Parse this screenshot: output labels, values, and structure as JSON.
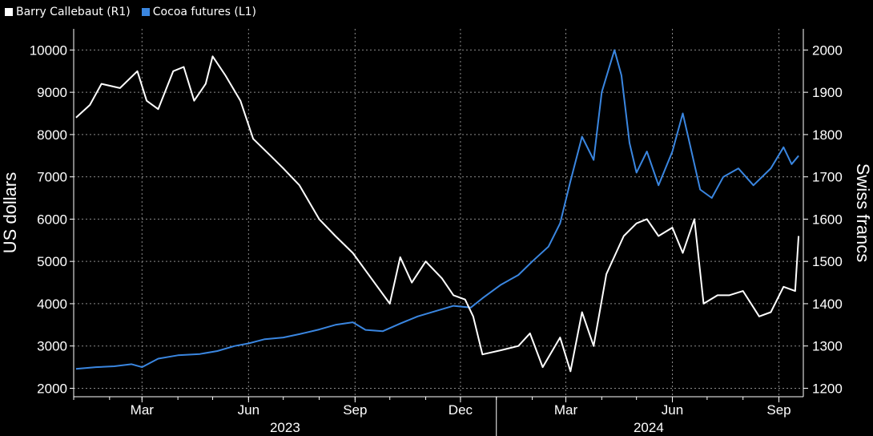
{
  "colors": {
    "background": "#000000",
    "cocoa": "#3a86e0",
    "barry": "#ffffff",
    "grid": "#8a8a8a"
  },
  "legend": [
    {
      "label": "Barry Callebaut (R1)",
      "color": "#ffffff"
    },
    {
      "label": "Cocoa futures (L1)",
      "color": "#3a86e0"
    }
  ],
  "chart_data": {
    "type": "line",
    "title": "",
    "left_axis": {
      "label": "US dollars",
      "ticks": [
        10000,
        9000,
        8000,
        7000,
        6000,
        5000,
        4000,
        3000,
        2000
      ],
      "range": [
        1800,
        10500
      ]
    },
    "right_axis": {
      "label": "Swiss francs",
      "ticks": [
        2000,
        1900,
        1800,
        1700,
        1600,
        1500,
        1400,
        1300,
        1200
      ],
      "range": [
        1180,
        2050
      ]
    },
    "x_axis": {
      "range": [
        "2023-01-01",
        "2024-09-20"
      ],
      "month_ticks": [
        {
          "label": "Mar",
          "date": "2023-03-01"
        },
        {
          "label": "Jun",
          "date": "2023-06-01"
        },
        {
          "label": "Sep",
          "date": "2023-09-01"
        },
        {
          "label": "Dec",
          "date": "2023-12-01"
        },
        {
          "label": "Mar",
          "date": "2024-03-01"
        },
        {
          "label": "Jun",
          "date": "2024-06-01"
        },
        {
          "label": "Sep",
          "date": "2024-09-01"
        }
      ],
      "year_labels": [
        {
          "label": "2023",
          "start": "2023-01-01",
          "end": "2024-01-01"
        },
        {
          "label": "2024",
          "start": "2024-01-01",
          "end": "2024-09-20"
        }
      ],
      "year_divider": "2024-01-01"
    },
    "series": [
      {
        "name": "Cocoa futures (L1)",
        "axis": "left",
        "color": "#3a86e0",
        "points": [
          [
            "2023-01-03",
            2460
          ],
          [
            "2023-01-20",
            2500
          ],
          [
            "2023-02-05",
            2520
          ],
          [
            "2023-02-20",
            2570
          ],
          [
            "2023-03-01",
            2500
          ],
          [
            "2023-03-15",
            2700
          ],
          [
            "2023-04-01",
            2780
          ],
          [
            "2023-04-20",
            2810
          ],
          [
            "2023-05-05",
            2880
          ],
          [
            "2023-05-20",
            3000
          ],
          [
            "2023-06-01",
            3060
          ],
          [
            "2023-06-15",
            3160
          ],
          [
            "2023-07-01",
            3200
          ],
          [
            "2023-07-15",
            3280
          ],
          [
            "2023-08-01",
            3390
          ],
          [
            "2023-08-15",
            3500
          ],
          [
            "2023-08-30",
            3560
          ],
          [
            "2023-09-10",
            3380
          ],
          [
            "2023-09-25",
            3350
          ],
          [
            "2023-10-10",
            3530
          ],
          [
            "2023-10-25",
            3700
          ],
          [
            "2023-11-10",
            3830
          ],
          [
            "2023-11-25",
            3950
          ],
          [
            "2023-12-10",
            3910
          ],
          [
            "2023-12-20",
            4130
          ],
          [
            "2024-01-05",
            4450
          ],
          [
            "2024-01-20",
            4680
          ],
          [
            "2024-02-01",
            5000
          ],
          [
            "2024-02-15",
            5350
          ],
          [
            "2024-02-25",
            5900
          ],
          [
            "2024-03-05",
            6900
          ],
          [
            "2024-03-15",
            7950
          ],
          [
            "2024-03-25",
            7400
          ],
          [
            "2024-04-01",
            9000
          ],
          [
            "2024-04-12",
            10000
          ],
          [
            "2024-04-18",
            9400
          ],
          [
            "2024-04-25",
            7800
          ],
          [
            "2024-05-01",
            7100
          ],
          [
            "2024-05-10",
            7600
          ],
          [
            "2024-05-20",
            6800
          ],
          [
            "2024-06-01",
            7600
          ],
          [
            "2024-06-10",
            8500
          ],
          [
            "2024-06-15",
            7900
          ],
          [
            "2024-06-25",
            6700
          ],
          [
            "2024-07-05",
            6500
          ],
          [
            "2024-07-15",
            7000
          ],
          [
            "2024-07-28",
            7200
          ],
          [
            "2024-08-10",
            6800
          ],
          [
            "2024-08-25",
            7200
          ],
          [
            "2024-09-05",
            7700
          ],
          [
            "2024-09-12",
            7300
          ],
          [
            "2024-09-18",
            7500
          ]
        ]
      },
      {
        "name": "Barry Callebaut (R1)",
        "axis": "right",
        "color": "#ffffff",
        "points": [
          [
            "2023-01-03",
            1840
          ],
          [
            "2023-01-15",
            1870
          ],
          [
            "2023-01-25",
            1920
          ],
          [
            "2023-02-10",
            1910
          ],
          [
            "2023-02-25",
            1950
          ],
          [
            "2023-03-05",
            1880
          ],
          [
            "2023-03-15",
            1860
          ],
          [
            "2023-03-28",
            1950
          ],
          [
            "2023-04-06",
            1960
          ],
          [
            "2023-04-15",
            1880
          ],
          [
            "2023-04-25",
            1920
          ],
          [
            "2023-05-01",
            1985
          ],
          [
            "2023-05-12",
            1940
          ],
          [
            "2023-05-25",
            1880
          ],
          [
            "2023-06-05",
            1790
          ],
          [
            "2023-06-20",
            1750
          ],
          [
            "2023-07-01",
            1720
          ],
          [
            "2023-07-15",
            1680
          ],
          [
            "2023-08-01",
            1600
          ],
          [
            "2023-08-15",
            1560
          ],
          [
            "2023-08-30",
            1520
          ],
          [
            "2023-09-15",
            1460
          ],
          [
            "2023-10-01",
            1400
          ],
          [
            "2023-10-10",
            1510
          ],
          [
            "2023-10-20",
            1450
          ],
          [
            "2023-11-01",
            1500
          ],
          [
            "2023-11-15",
            1460
          ],
          [
            "2023-11-25",
            1420
          ],
          [
            "2023-12-05",
            1410
          ],
          [
            "2023-12-12",
            1370
          ],
          [
            "2023-12-20",
            1280
          ],
          [
            "2024-01-05",
            1290
          ],
          [
            "2024-01-20",
            1300
          ],
          [
            "2024-01-30",
            1330
          ],
          [
            "2024-02-10",
            1250
          ],
          [
            "2024-02-25",
            1320
          ],
          [
            "2024-03-05",
            1240
          ],
          [
            "2024-03-15",
            1380
          ],
          [
            "2024-03-25",
            1300
          ],
          [
            "2024-04-05",
            1470
          ],
          [
            "2024-04-20",
            1560
          ],
          [
            "2024-05-01",
            1590
          ],
          [
            "2024-05-10",
            1600
          ],
          [
            "2024-05-20",
            1560
          ],
          [
            "2024-06-01",
            1580
          ],
          [
            "2024-06-10",
            1520
          ],
          [
            "2024-06-20",
            1600
          ],
          [
            "2024-06-28",
            1400
          ],
          [
            "2024-07-10",
            1420
          ],
          [
            "2024-07-20",
            1420
          ],
          [
            "2024-08-01",
            1430
          ],
          [
            "2024-08-15",
            1370
          ],
          [
            "2024-08-25",
            1380
          ],
          [
            "2024-09-05",
            1440
          ],
          [
            "2024-09-15",
            1430
          ],
          [
            "2024-09-18",
            1560
          ]
        ]
      }
    ]
  }
}
